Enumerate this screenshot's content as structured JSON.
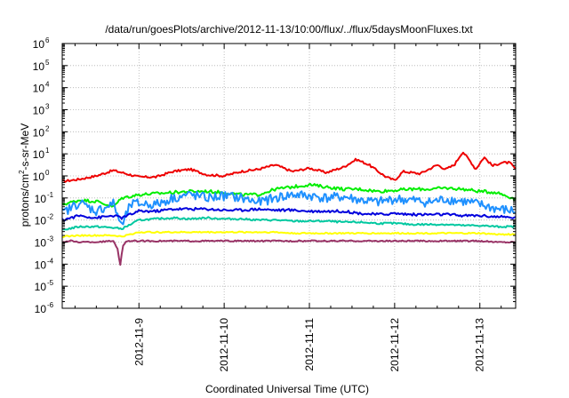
{
  "chart_data": {
    "type": "line",
    "title": "/data/run/goesPlots/archive/2012-11-13/10:00/flux/../flux/5daysMoonFluxes.txt",
    "xlabel": "Coordinated Universal Time (UTC)",
    "ylabel": "protons/cm2-s-sr-MeV",
    "y_scale": "log",
    "grid": true,
    "legend": "none",
    "ylim_exponents": [
      -6,
      6
    ],
    "y_ticks": [
      {
        "base": "10",
        "exp": "-6",
        "value": -6
      },
      {
        "base": "10",
        "exp": "-5",
        "value": -5
      },
      {
        "base": "10",
        "exp": "-4",
        "value": -4
      },
      {
        "base": "10",
        "exp": "-3",
        "value": -3
      },
      {
        "base": "10",
        "exp": "-2",
        "value": -2
      },
      {
        "base": "10",
        "exp": "-1",
        "value": -1
      },
      {
        "base": "10",
        "exp": "0",
        "value": 0
      },
      {
        "base": "10",
        "exp": "1",
        "value": 1
      },
      {
        "base": "10",
        "exp": "2",
        "value": 2
      },
      {
        "base": "10",
        "exp": "3",
        "value": 3
      },
      {
        "base": "10",
        "exp": "4",
        "value": 4
      },
      {
        "base": "10",
        "exp": "5",
        "value": 5
      },
      {
        "base": "10",
        "exp": "6",
        "value": 6
      }
    ],
    "xlim_days": [
      8.1,
      13.42
    ],
    "x_ticks": [
      {
        "label": "2012-11-9",
        "value": 9
      },
      {
        "label": "2012-11-10",
        "value": 10
      },
      {
        "label": "2012-11-11",
        "value": 11
      },
      {
        "label": "2012-11-12",
        "value": 12
      },
      {
        "label": "2012-11-13",
        "value": 13
      }
    ],
    "series": [
      {
        "color": "#ee0000",
        "points": [
          [
            8.1,
            -0.25
          ],
          [
            8.3,
            -0.15
          ],
          [
            8.5,
            0.0
          ],
          [
            8.7,
            0.25
          ],
          [
            8.8,
            0.15
          ],
          [
            9.0,
            -0.05
          ],
          [
            9.2,
            -0.05
          ],
          [
            9.4,
            0.2
          ],
          [
            9.6,
            0.3
          ],
          [
            9.8,
            0.05
          ],
          [
            10.0,
            0.0
          ],
          [
            10.2,
            0.2
          ],
          [
            10.4,
            0.3
          ],
          [
            10.6,
            0.5
          ],
          [
            10.8,
            0.2
          ],
          [
            11.0,
            0.35
          ],
          [
            11.2,
            0.15
          ],
          [
            11.4,
            0.4
          ],
          [
            11.55,
            0.75
          ],
          [
            11.7,
            0.5
          ],
          [
            11.9,
            -0.05
          ],
          [
            12.0,
            -0.2
          ],
          [
            12.1,
            0.2
          ],
          [
            12.3,
            0.1
          ],
          [
            12.5,
            0.5
          ],
          [
            12.6,
            0.3
          ],
          [
            12.7,
            0.5
          ],
          [
            12.8,
            1.1
          ],
          [
            12.9,
            0.6
          ],
          [
            12.95,
            0.3
          ],
          [
            13.05,
            0.85
          ],
          [
            13.15,
            0.45
          ],
          [
            13.25,
            0.6
          ],
          [
            13.35,
            0.6
          ],
          [
            13.42,
            0.3
          ]
        ]
      },
      {
        "color": "#00ee00",
        "points": [
          [
            8.1,
            -1.3
          ],
          [
            8.3,
            -1.1
          ],
          [
            8.5,
            -1.15
          ],
          [
            8.7,
            -1.4
          ],
          [
            8.8,
            -1.0
          ],
          [
            9.0,
            -0.85
          ],
          [
            9.2,
            -0.8
          ],
          [
            9.4,
            -0.75
          ],
          [
            9.6,
            -0.7
          ],
          [
            9.8,
            -0.7
          ],
          [
            10.0,
            -0.75
          ],
          [
            10.2,
            -0.85
          ],
          [
            10.4,
            -0.85
          ],
          [
            10.6,
            -0.6
          ],
          [
            10.8,
            -0.5
          ],
          [
            11.0,
            -0.4
          ],
          [
            11.2,
            -0.5
          ],
          [
            11.4,
            -0.6
          ],
          [
            11.6,
            -0.6
          ],
          [
            11.8,
            -0.7
          ],
          [
            12.0,
            -0.65
          ],
          [
            12.2,
            -0.6
          ],
          [
            12.4,
            -0.6
          ],
          [
            12.6,
            -0.55
          ],
          [
            12.8,
            -0.6
          ],
          [
            13.0,
            -0.7
          ],
          [
            13.2,
            -0.75
          ],
          [
            13.42,
            -1.05
          ]
        ]
      },
      {
        "color": "#1e90ff",
        "points": [
          [
            8.1,
            -1.7
          ],
          [
            8.3,
            -1.2
          ],
          [
            8.5,
            -1.6
          ],
          [
            8.7,
            -1.25
          ],
          [
            8.8,
            -2.3
          ],
          [
            8.9,
            -1.3
          ],
          [
            9.0,
            -1.25
          ],
          [
            9.2,
            -1.3
          ],
          [
            9.4,
            -1.0
          ],
          [
            9.6,
            -0.85
          ],
          [
            9.8,
            -1.0
          ],
          [
            10.0,
            -0.9
          ],
          [
            10.2,
            -1.0
          ],
          [
            10.4,
            -1.2
          ],
          [
            10.6,
            -1.0
          ],
          [
            10.8,
            -0.85
          ],
          [
            11.0,
            -0.9
          ],
          [
            11.2,
            -1.0
          ],
          [
            11.4,
            -0.95
          ],
          [
            11.6,
            -1.1
          ],
          [
            11.8,
            -1.2
          ],
          [
            12.0,
            -1.05
          ],
          [
            12.2,
            -1.1
          ],
          [
            12.4,
            -1.2
          ],
          [
            12.6,
            -1.05
          ],
          [
            12.8,
            -1.15
          ],
          [
            13.0,
            -1.3
          ],
          [
            13.2,
            -1.5
          ],
          [
            13.42,
            -1.6
          ]
        ]
      },
      {
        "color": "#0000dd",
        "points": [
          [
            8.1,
            -2.0
          ],
          [
            8.3,
            -1.8
          ],
          [
            8.5,
            -1.9
          ],
          [
            8.7,
            -1.8
          ],
          [
            8.8,
            -1.9
          ],
          [
            9.0,
            -1.6
          ],
          [
            9.2,
            -1.6
          ],
          [
            9.4,
            -1.5
          ],
          [
            9.6,
            -1.5
          ],
          [
            9.8,
            -1.5
          ],
          [
            10.0,
            -1.55
          ],
          [
            10.2,
            -1.55
          ],
          [
            10.4,
            -1.5
          ],
          [
            10.6,
            -1.55
          ],
          [
            10.8,
            -1.55
          ],
          [
            11.0,
            -1.6
          ],
          [
            11.2,
            -1.6
          ],
          [
            11.4,
            -1.6
          ],
          [
            11.6,
            -1.7
          ],
          [
            11.8,
            -1.75
          ],
          [
            12.0,
            -1.7
          ],
          [
            12.2,
            -1.75
          ],
          [
            12.4,
            -1.75
          ],
          [
            12.6,
            -1.75
          ],
          [
            12.8,
            -1.8
          ],
          [
            13.0,
            -1.8
          ],
          [
            13.2,
            -1.85
          ],
          [
            13.42,
            -1.9
          ]
        ]
      },
      {
        "color": "#00c8a0",
        "points": [
          [
            8.1,
            -2.45
          ],
          [
            8.3,
            -2.3
          ],
          [
            8.5,
            -2.3
          ],
          [
            8.7,
            -2.35
          ],
          [
            8.8,
            -2.4
          ],
          [
            9.0,
            -2.0
          ],
          [
            9.2,
            -1.95
          ],
          [
            9.4,
            -1.9
          ],
          [
            9.6,
            -1.95
          ],
          [
            9.8,
            -1.9
          ],
          [
            10.0,
            -1.95
          ],
          [
            10.2,
            -1.95
          ],
          [
            10.4,
            -2.0
          ],
          [
            10.6,
            -2.0
          ],
          [
            10.8,
            -2.05
          ],
          [
            11.0,
            -2.05
          ],
          [
            11.2,
            -2.05
          ],
          [
            11.4,
            -2.1
          ],
          [
            11.6,
            -2.1
          ],
          [
            11.8,
            -2.15
          ],
          [
            12.0,
            -2.15
          ],
          [
            12.2,
            -2.2
          ],
          [
            12.4,
            -2.2
          ],
          [
            12.6,
            -2.2
          ],
          [
            12.8,
            -2.25
          ],
          [
            13.0,
            -2.25
          ],
          [
            13.2,
            -2.3
          ],
          [
            13.42,
            -2.3
          ]
        ]
      },
      {
        "color": "#ffff00",
        "points": [
          [
            8.1,
            -2.75
          ],
          [
            8.3,
            -2.7
          ],
          [
            8.5,
            -2.7
          ],
          [
            8.7,
            -2.7
          ],
          [
            8.8,
            -2.75
          ],
          [
            9.0,
            -2.55
          ],
          [
            9.2,
            -2.55
          ],
          [
            9.4,
            -2.55
          ],
          [
            9.6,
            -2.55
          ],
          [
            9.8,
            -2.55
          ],
          [
            10.0,
            -2.55
          ],
          [
            10.2,
            -2.55
          ],
          [
            10.4,
            -2.55
          ],
          [
            10.6,
            -2.55
          ],
          [
            10.8,
            -2.6
          ],
          [
            11.0,
            -2.6
          ],
          [
            11.2,
            -2.6
          ],
          [
            11.4,
            -2.6
          ],
          [
            11.6,
            -2.6
          ],
          [
            11.8,
            -2.6
          ],
          [
            12.0,
            -2.6
          ],
          [
            12.2,
            -2.6
          ],
          [
            12.4,
            -2.6
          ],
          [
            12.6,
            -2.6
          ],
          [
            12.8,
            -2.6
          ],
          [
            13.0,
            -2.6
          ],
          [
            13.2,
            -2.65
          ],
          [
            13.42,
            -2.65
          ]
        ]
      },
      {
        "color": "#993366",
        "points": [
          [
            8.1,
            -3.0
          ],
          [
            8.2,
            -2.95
          ],
          [
            8.3,
            -3.0
          ],
          [
            8.5,
            -3.0
          ],
          [
            8.7,
            -2.95
          ],
          [
            8.75,
            -3.3
          ],
          [
            8.78,
            -4.1
          ],
          [
            8.81,
            -3.2
          ],
          [
            8.85,
            -2.95
          ],
          [
            9.0,
            -2.95
          ],
          [
            9.2,
            -2.95
          ],
          [
            9.4,
            -2.95
          ],
          [
            9.6,
            -2.95
          ],
          [
            9.8,
            -2.95
          ],
          [
            10.0,
            -2.95
          ],
          [
            10.2,
            -2.95
          ],
          [
            10.4,
            -2.95
          ],
          [
            10.6,
            -2.95
          ],
          [
            10.8,
            -2.95
          ],
          [
            11.0,
            -2.95
          ],
          [
            11.2,
            -2.95
          ],
          [
            11.4,
            -2.95
          ],
          [
            11.6,
            -2.95
          ],
          [
            11.8,
            -2.95
          ],
          [
            12.0,
            -2.95
          ],
          [
            12.2,
            -2.95
          ],
          [
            12.4,
            -2.95
          ],
          [
            12.6,
            -2.95
          ],
          [
            12.8,
            -2.95
          ],
          [
            13.0,
            -2.95
          ],
          [
            13.2,
            -3.0
          ],
          [
            13.42,
            -3.0
          ]
        ]
      }
    ]
  }
}
